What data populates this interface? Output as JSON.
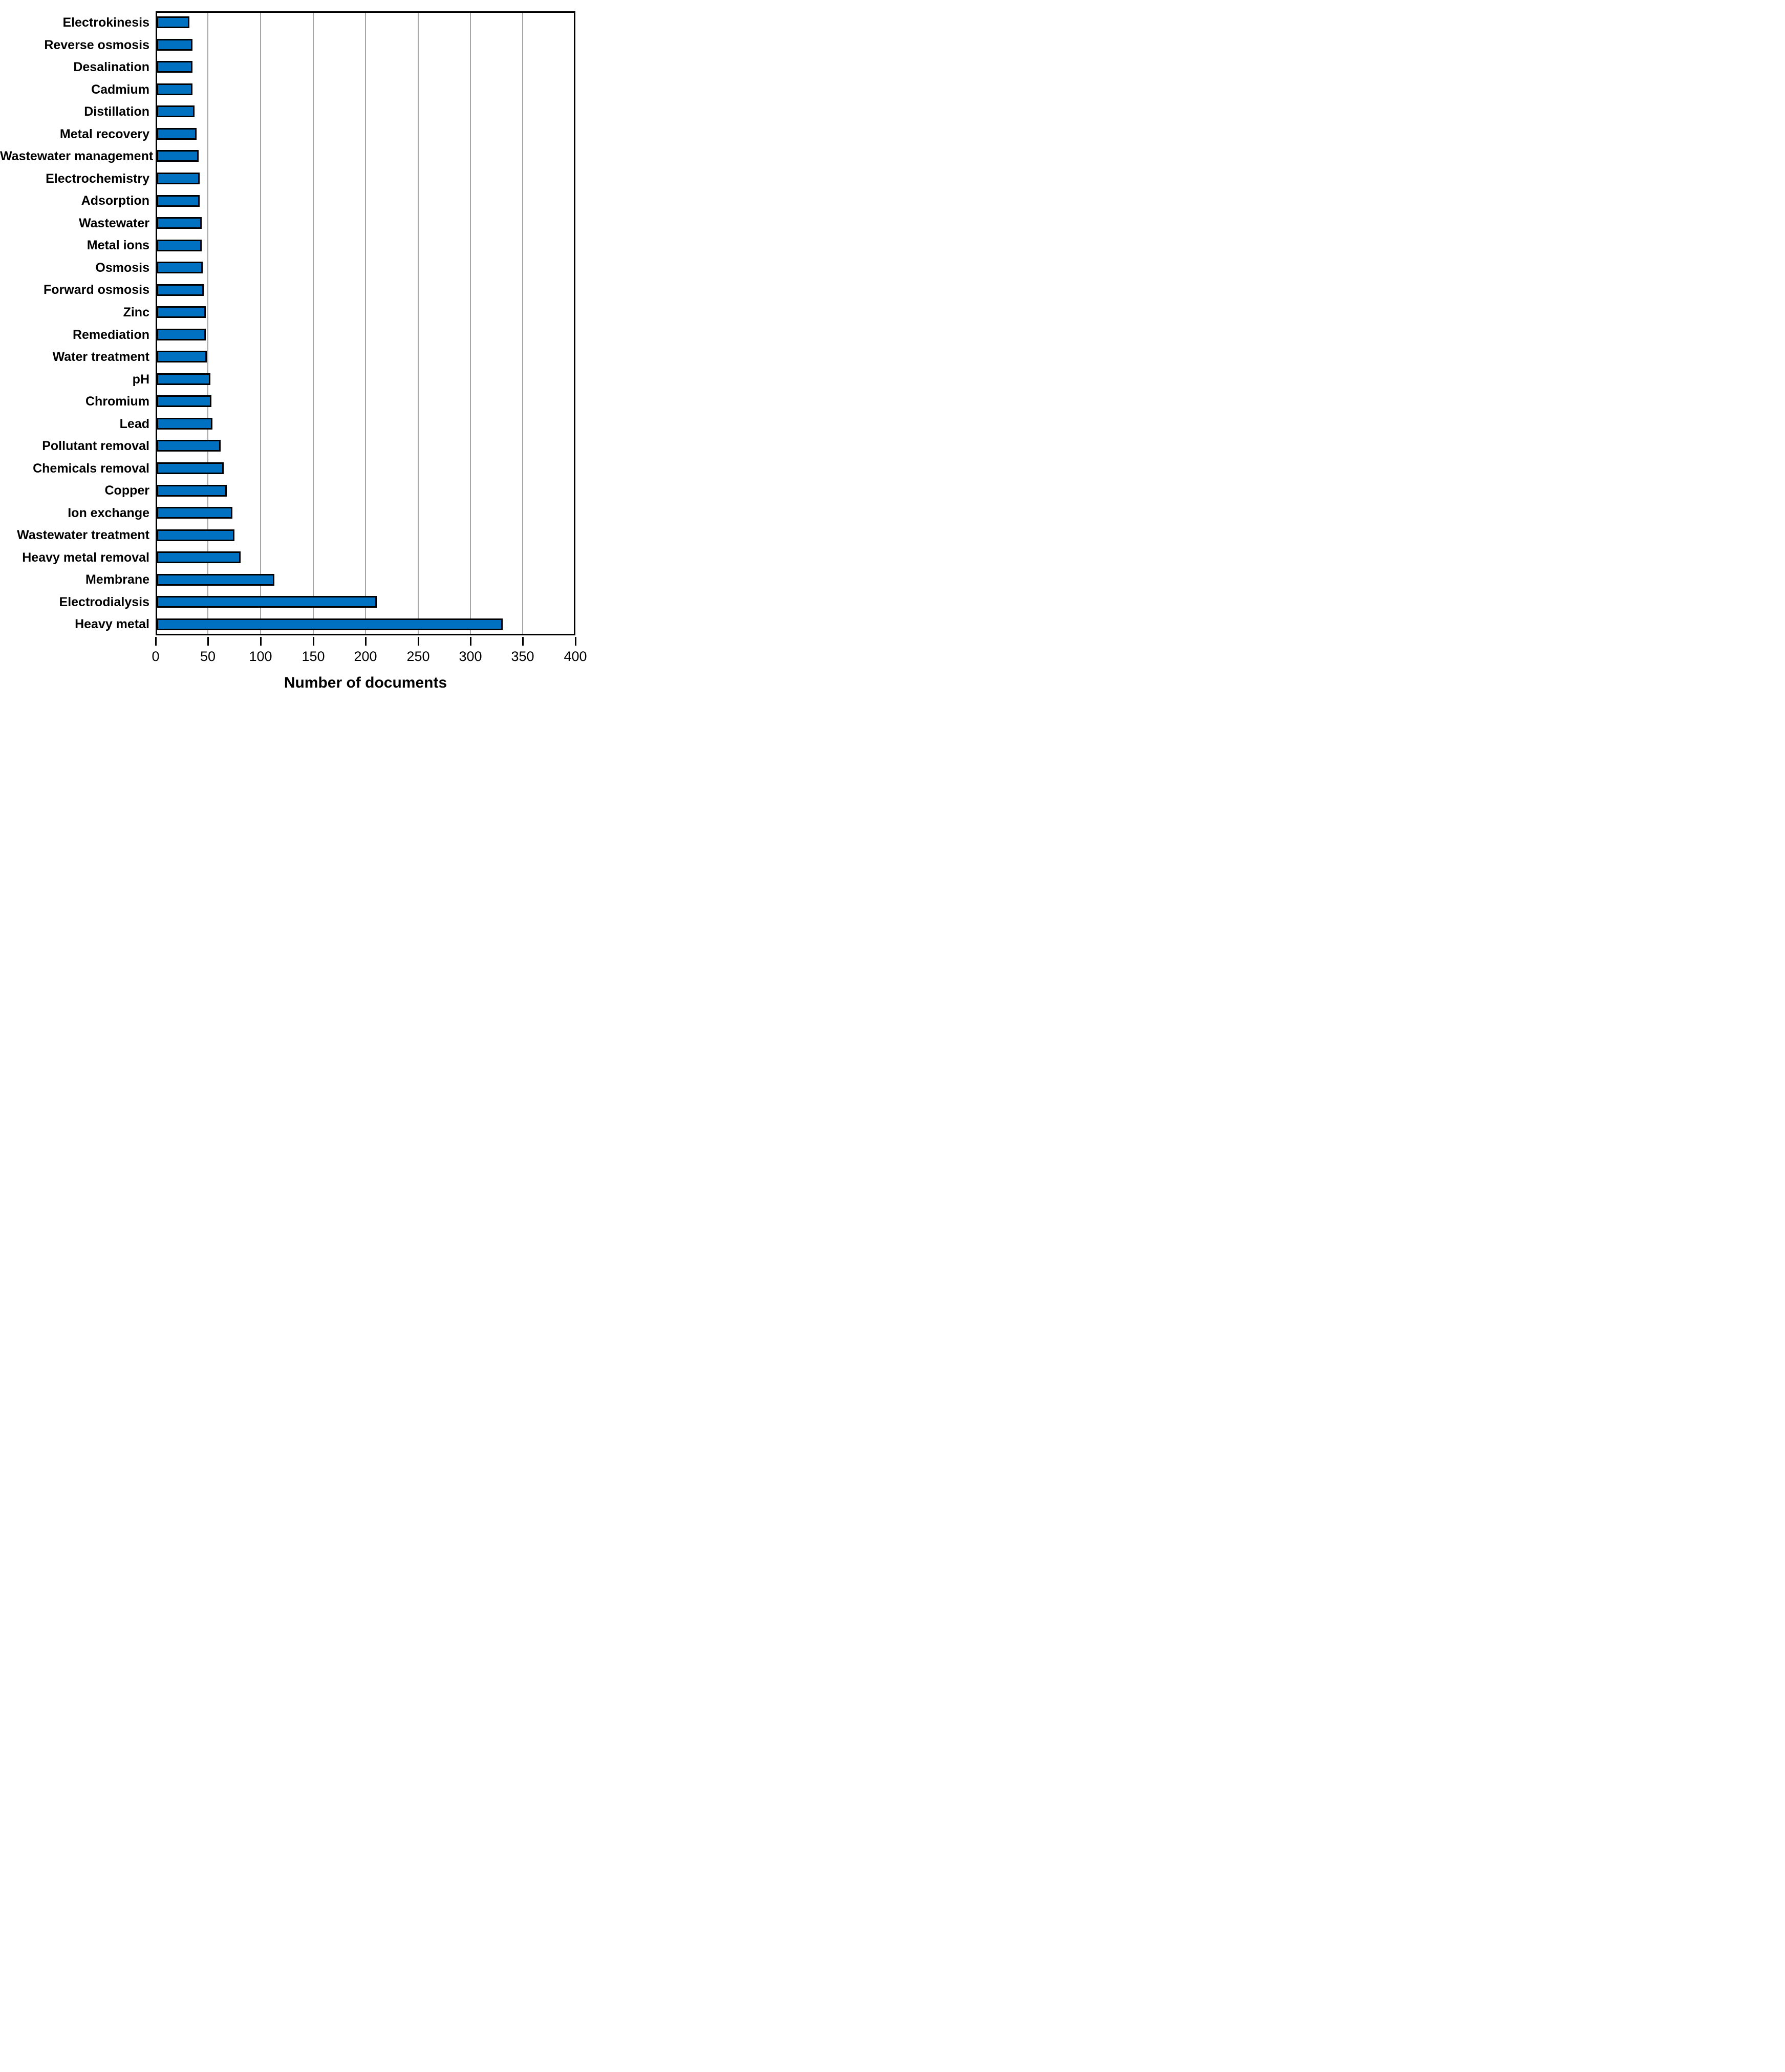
{
  "chart_data": {
    "type": "bar",
    "orientation": "horizontal",
    "title": "",
    "xlabel": "Number of documents",
    "ylabel": "",
    "xlim": [
      0,
      400
    ],
    "xticks": [
      0,
      50,
      100,
      150,
      200,
      250,
      300,
      350,
      400
    ],
    "grid": "vertical",
    "legend": "none",
    "categories": [
      "Electrokinesis",
      "Reverse osmosis",
      "Desalination",
      "Cadmium",
      "Distillation",
      "Metal recovery",
      "Wastewater management",
      "Electrochemistry",
      "Adsorption",
      "Wastewater",
      "Metal ions",
      "Osmosis",
      "Forward osmosis",
      "Zinc",
      "Remediation",
      "Water treatment",
      "pH",
      "Chromium",
      "Lead",
      "Pollutant removal",
      "Chemicals removal",
      "Copper",
      "Ion exchange",
      "Wastewater treatment",
      "Heavy metal removal",
      "Membrane",
      "Electrodialysis",
      "Heavy metal"
    ],
    "values": [
      31,
      34,
      34,
      34,
      36,
      38,
      40,
      41,
      41,
      43,
      43,
      44,
      45,
      47,
      47,
      48,
      51,
      52,
      53,
      61,
      64,
      67,
      72,
      74,
      80,
      112,
      210,
      330
    ],
    "colors": {
      "bar_fill": "#0070C0",
      "bar_border": "#000000",
      "gridline": "#A6A6A6",
      "axis_frame": "#000000",
      "text": "#000000",
      "background": "#FFFFFF"
    }
  }
}
